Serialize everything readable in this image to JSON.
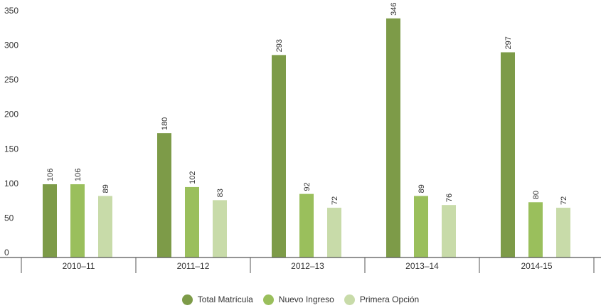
{
  "chart_data": {
    "type": "bar",
    "categories": [
      "2010–11",
      "2011–12",
      "2012–13",
      "2013–14",
      "2014-15"
    ],
    "series": [
      {
        "name": "Total Matrícula",
        "values": [
          106,
          180,
          293,
          346,
          297
        ],
        "color": "#7d9b48"
      },
      {
        "name": "Nuevo Ingreso",
        "values": [
          106,
          102,
          92,
          89,
          80
        ],
        "color": "#9abf5c"
      },
      {
        "name": "Primera Opción",
        "values": [
          89,
          83,
          72,
          76,
          72
        ],
        "color": "#c8dba9"
      }
    ],
    "ylim": [
      0,
      350
    ],
    "yticks": [
      0,
      50,
      100,
      150,
      200,
      250,
      300,
      350
    ],
    "grid": false,
    "legend": "bottom-center",
    "data_labels": "rotated-above-bars"
  }
}
